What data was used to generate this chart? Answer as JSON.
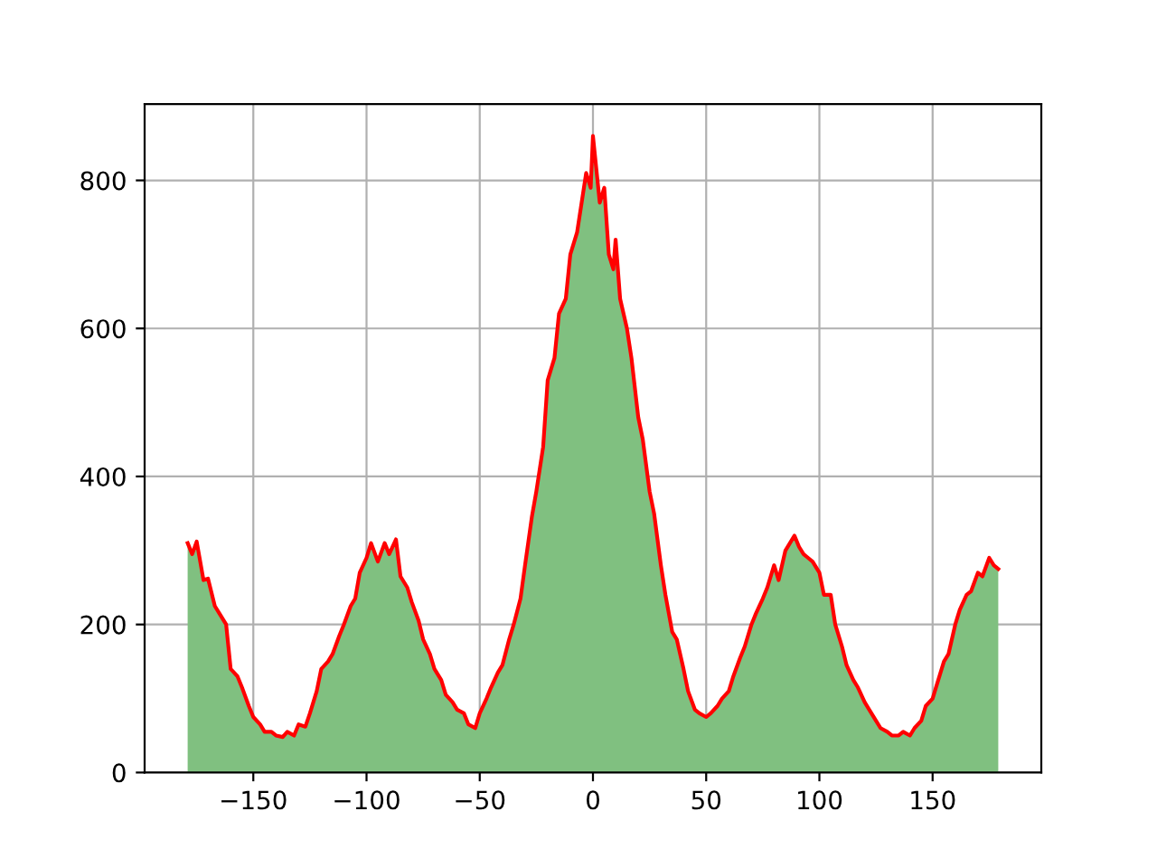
{
  "chart_data": {
    "type": "area",
    "x": [
      -179,
      -177,
      -175,
      -172,
      -170,
      -167,
      -165,
      -162,
      -160,
      -157,
      -155,
      -152,
      -150,
      -147,
      -145,
      -142,
      -140,
      -137,
      -135,
      -132,
      -130,
      -127,
      -125,
      -122,
      -120,
      -117,
      -115,
      -112,
      -110,
      -107,
      -105,
      -103,
      -100,
      -98,
      -95,
      -92,
      -90,
      -87,
      -85,
      -82,
      -80,
      -77,
      -75,
      -72,
      -70,
      -67,
      -65,
      -62,
      -60,
      -57,
      -55,
      -52,
      -50,
      -47,
      -45,
      -42,
      -40,
      -37,
      -35,
      -32,
      -30,
      -27,
      -25,
      -22,
      -20,
      -17,
      -15,
      -12,
      -10,
      -7,
      -5,
      -3,
      -1,
      0,
      1,
      3,
      5,
      7,
      9,
      10,
      12,
      15,
      17,
      20,
      22,
      25,
      27,
      30,
      32,
      35,
      37,
      40,
      42,
      45,
      47,
      50,
      52,
      55,
      57,
      60,
      62,
      65,
      67,
      70,
      72,
      75,
      77,
      80,
      82,
      85,
      87,
      89,
      91,
      93,
      95,
      97,
      100,
      102,
      105,
      107,
      110,
      112,
      115,
      117,
      120,
      122,
      125,
      127,
      130,
      132,
      135,
      137,
      140,
      142,
      145,
      147,
      150,
      152,
      155,
      157,
      160,
      162,
      165,
      167,
      170,
      172,
      175,
      177,
      179
    ],
    "series": [
      {
        "color": "#80c080",
        "values": [
          310,
          295,
          312,
          260,
          262,
          225,
          215,
          200,
          140,
          130,
          115,
          90,
          75,
          65,
          55,
          55,
          50,
          48,
          55,
          50,
          65,
          62,
          80,
          110,
          140,
          150,
          160,
          185,
          200,
          225,
          235,
          270,
          290,
          310,
          285,
          310,
          295,
          315,
          265,
          250,
          230,
          205,
          180,
          160,
          140,
          125,
          105,
          95,
          85,
          80,
          65,
          60,
          80,
          100,
          115,
          135,
          145,
          180,
          200,
          235,
          280,
          345,
          380,
          440,
          530,
          560,
          620,
          640,
          700,
          730,
          770,
          810,
          790,
          860,
          830,
          770,
          790,
          700,
          680,
          720,
          640,
          600,
          560,
          480,
          450,
          380,
          350,
          280,
          240,
          190,
          180,
          140,
          110,
          85,
          80,
          75,
          80,
          90,
          100,
          110,
          130,
          155,
          170,
          200,
          215,
          235,
          250,
          280,
          260,
          300,
          310,
          320,
          305,
          295,
          290,
          285,
          270,
          240,
          240,
          200,
          170,
          145,
          125,
          115,
          95,
          85,
          70,
          60,
          55,
          50,
          50,
          55,
          50,
          60,
          70,
          90,
          100,
          120,
          150,
          160,
          200,
          220,
          240,
          245,
          270,
          265,
          290,
          280,
          275
        ]
      },
      {
        "type": "line",
        "color": "#ff0000",
        "values": [
          310,
          295,
          312,
          260,
          262,
          225,
          215,
          200,
          140,
          130,
          115,
          90,
          75,
          65,
          55,
          55,
          50,
          48,
          55,
          50,
          65,
          62,
          80,
          110,
          140,
          150,
          160,
          185,
          200,
          225,
          235,
          270,
          290,
          310,
          285,
          310,
          295,
          315,
          265,
          250,
          230,
          205,
          180,
          160,
          140,
          125,
          105,
          95,
          85,
          80,
          65,
          60,
          80,
          100,
          115,
          135,
          145,
          180,
          200,
          235,
          280,
          345,
          380,
          440,
          530,
          560,
          620,
          640,
          700,
          730,
          770,
          810,
          790,
          860,
          830,
          770,
          790,
          700,
          680,
          720,
          640,
          600,
          560,
          480,
          450,
          380,
          350,
          280,
          240,
          190,
          180,
          140,
          110,
          85,
          80,
          75,
          80,
          90,
          100,
          110,
          130,
          155,
          170,
          200,
          215,
          235,
          250,
          280,
          260,
          300,
          310,
          320,
          305,
          295,
          290,
          285,
          270,
          240,
          240,
          200,
          170,
          145,
          125,
          115,
          95,
          85,
          70,
          60,
          55,
          50,
          50,
          55,
          50,
          60,
          70,
          90,
          100,
          120,
          150,
          160,
          200,
          220,
          240,
          245,
          270,
          265,
          290,
          280,
          275
        ]
      }
    ],
    "xlim": [
      -198,
      198
    ],
    "ylim": [
      0,
      903
    ],
    "xticks": [
      -150,
      -100,
      -50,
      0,
      50,
      100,
      150
    ],
    "yticks": [
      0,
      200,
      400,
      600,
      800
    ],
    "grid": true
  }
}
